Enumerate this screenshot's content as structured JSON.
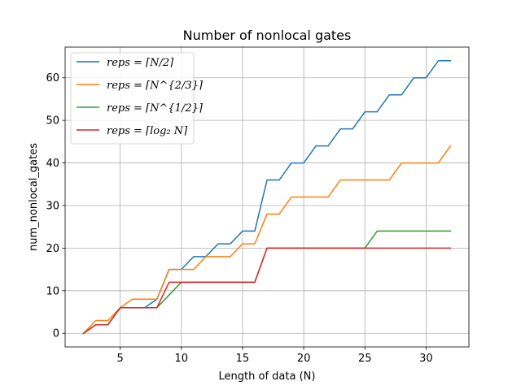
{
  "chart_data": {
    "type": "line",
    "title": "Number of nonlocal gates",
    "xlabel": "Length of data (N)",
    "ylabel": "num_nonlocal_gates",
    "xlim": [
      0.5,
      33.5
    ],
    "ylim": [
      -3.2,
      67.2
    ],
    "xticks": [
      5,
      10,
      15,
      20,
      25,
      30
    ],
    "yticks": [
      0,
      10,
      20,
      30,
      40,
      50,
      60
    ],
    "grid": true,
    "legend_position": "top-left",
    "x": [
      2,
      3,
      4,
      5,
      6,
      7,
      8,
      9,
      10,
      11,
      12,
      13,
      14,
      15,
      16,
      17,
      18,
      19,
      20,
      21,
      22,
      23,
      24,
      25,
      26,
      27,
      28,
      29,
      30,
      31,
      32
    ],
    "series": [
      {
        "name": "reps = ⌈N/2⌉",
        "color": "#1f77b4",
        "values": [
          0,
          2,
          2,
          6,
          6,
          6,
          8,
          15,
          15,
          18,
          18,
          21,
          21,
          24,
          24,
          36,
          36,
          40,
          40,
          44,
          44,
          48,
          48,
          52,
          52,
          56,
          56,
          60,
          60,
          64,
          64
        ]
      },
      {
        "name": "reps = ⌈N^{2/3}⌉",
        "color": "#ff7f0e",
        "values": [
          0,
          3,
          3,
          6,
          8,
          8,
          8,
          15,
          15,
          15,
          18,
          18,
          18,
          21,
          21,
          28,
          28,
          32,
          32,
          32,
          32,
          36,
          36,
          36,
          36,
          36,
          40,
          40,
          40,
          40,
          44
        ]
      },
      {
        "name": "reps = ⌈N^{1/2}⌉",
        "color": "#2ca02c",
        "values": [
          0,
          2,
          2,
          6,
          6,
          6,
          6,
          9,
          12,
          12,
          12,
          12,
          12,
          12,
          12,
          20,
          20,
          20,
          20,
          20,
          20,
          20,
          20,
          20,
          24,
          24,
          24,
          24,
          24,
          24,
          24
        ]
      },
      {
        "name": "reps = ⌈log₂ N⌉",
        "color": "#d62728",
        "values": [
          0,
          2,
          2,
          6,
          6,
          6,
          6,
          12,
          12,
          12,
          12,
          12,
          12,
          12,
          12,
          20,
          20,
          20,
          20,
          20,
          20,
          20,
          20,
          20,
          20,
          20,
          20,
          20,
          20,
          20,
          20
        ]
      }
    ]
  }
}
